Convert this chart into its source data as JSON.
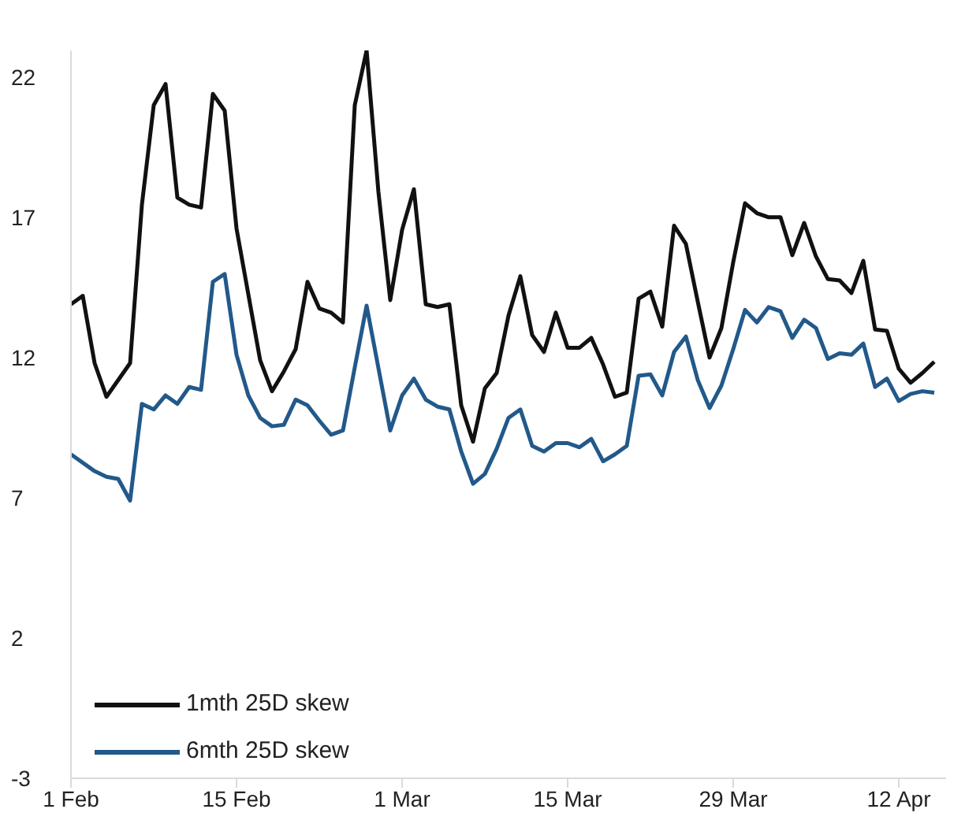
{
  "chart_data": {
    "type": "line",
    "xlim": [
      "--02-01",
      "--04-16"
    ],
    "xticks": [
      {
        "value": "--02-01",
        "label": "1 Feb"
      },
      {
        "value": "--02-15",
        "label": "15 Feb"
      },
      {
        "value": "--03-01",
        "label": "1 Mar"
      },
      {
        "value": "--03-15",
        "label": "15 Mar"
      },
      {
        "value": "--03-29",
        "label": "29 Mar"
      },
      {
        "value": "--04-12",
        "label": "12 Apr"
      }
    ],
    "ylim": [
      -3,
      22.95
    ],
    "yticks": [
      -3,
      2,
      7,
      12,
      17,
      22
    ],
    "grid": false,
    "legend": "bottom left",
    "line_style": "solid",
    "marker": "none",
    "series": [
      {
        "name": "1mth 25D skew",
        "color": "#111111",
        "x": [
          "--02-01",
          "--02-02",
          "--02-03",
          "--02-04",
          "--02-06",
          "--02-07",
          "--02-08",
          "--02-09",
          "--02-10",
          "--02-11",
          "--02-12",
          "--02-13",
          "--02-14",
          "--02-15",
          "--02-16",
          "--02-17",
          "--02-18",
          "--02-19",
          "--02-20",
          "--02-21",
          "--02-22",
          "--02-23",
          "--02-24",
          "--02-25",
          "--02-26",
          "--02-27",
          "--02-28",
          "--03-01",
          "--03-02",
          "--03-03",
          "--03-04",
          "--03-05",
          "--03-06",
          "--03-07",
          "--03-08",
          "--03-09",
          "--03-10",
          "--03-11",
          "--03-12",
          "--03-13",
          "--03-14",
          "--03-15",
          "--03-16",
          "--03-17",
          "--03-18",
          "--03-19",
          "--03-20",
          "--03-21",
          "--03-22",
          "--03-23",
          "--03-24",
          "--03-25",
          "--03-26",
          "--03-27",
          "--03-28",
          "--03-29",
          "--03-30",
          "--03-31",
          "--04-01",
          "--04-02",
          "--04-03",
          "--04-04",
          "--04-05",
          "--04-06",
          "--04-07",
          "--04-08",
          "--04-09",
          "--04-10",
          "--04-11",
          "--04-12",
          "--04-13",
          "--04-14",
          "--04-15"
        ],
        "values": [
          13.9,
          14.2,
          11.8,
          10.6,
          11.8,
          17.45,
          21.0,
          21.75,
          17.7,
          17.45,
          17.35,
          21.4,
          20.8,
          16.6,
          14.25,
          11.9,
          10.8,
          11.5,
          12.3,
          14.7,
          13.75,
          13.6,
          13.25,
          21.0,
          22.95,
          17.9,
          14.05,
          16.55,
          18.0,
          13.9,
          13.8,
          13.9,
          10.3,
          9.0,
          10.9,
          11.45,
          13.5,
          14.9,
          12.8,
          12.2,
          13.6,
          12.35,
          12.35,
          12.7,
          11.75,
          10.6,
          10.75,
          14.1,
          14.35,
          13.1,
          16.7,
          16.05,
          14.0,
          12.0,
          13.05,
          15.4,
          17.5,
          17.15,
          17.0,
          17.0,
          15.65,
          16.8,
          15.6,
          14.8,
          14.75,
          14.3,
          15.45,
          13.0,
          12.95,
          11.6,
          11.1,
          11.45,
          11.85
        ]
      },
      {
        "name": "6mth 25D skew",
        "color": "#22598a",
        "x": [
          "--02-01",
          "--02-03",
          "--02-04",
          "--02-05",
          "--02-06",
          "--02-07",
          "--02-08",
          "--02-09",
          "--02-10",
          "--02-11",
          "--02-12",
          "--02-13",
          "--02-14",
          "--02-15",
          "--02-16",
          "--02-17",
          "--02-18",
          "--02-19",
          "--02-20",
          "--02-21",
          "--02-22",
          "--02-23",
          "--02-24",
          "--02-25",
          "--02-26",
          "--02-28",
          "--03-01",
          "--03-02",
          "--03-03",
          "--03-04",
          "--03-05",
          "--03-06",
          "--03-07",
          "--03-08",
          "--03-09",
          "--03-10",
          "--03-11",
          "--03-12",
          "--03-13",
          "--03-14",
          "--03-15",
          "--03-16",
          "--03-17",
          "--03-18",
          "--03-19",
          "--03-20",
          "--03-21",
          "--03-22",
          "--03-23",
          "--03-24",
          "--03-25",
          "--03-26",
          "--03-27",
          "--03-28",
          "--03-29",
          "--03-30",
          "--03-31",
          "--04-01",
          "--04-02",
          "--04-03",
          "--04-04",
          "--04-05",
          "--04-06",
          "--04-07",
          "--04-08",
          "--04-09",
          "--04-10",
          "--04-11",
          "--04-12",
          "--04-13",
          "--04-14",
          "--04-15"
        ],
        "values": [
          8.55,
          7.95,
          7.75,
          7.67,
          6.9,
          10.35,
          10.15,
          10.65,
          10.35,
          10.95,
          10.85,
          14.7,
          14.98,
          12.1,
          10.65,
          9.85,
          9.55,
          9.6,
          10.5,
          10.3,
          9.75,
          9.25,
          9.4,
          11.65,
          13.85,
          9.4,
          10.65,
          11.25,
          10.5,
          10.25,
          10.15,
          8.65,
          7.5,
          7.85,
          8.75,
          9.85,
          10.15,
          8.85,
          8.65,
          8.95,
          8.95,
          8.8,
          9.1,
          8.3,
          8.55,
          8.85,
          11.35,
          11.4,
          10.65,
          12.2,
          12.75,
          11.2,
          10.2,
          11.0,
          12.3,
          13.7,
          13.25,
          13.8,
          13.65,
          12.7,
          13.35,
          13.05,
          11.95,
          12.15,
          12.1,
          12.5,
          10.95,
          11.25,
          10.45,
          10.7,
          10.8,
          10.75
        ]
      }
    ]
  }
}
